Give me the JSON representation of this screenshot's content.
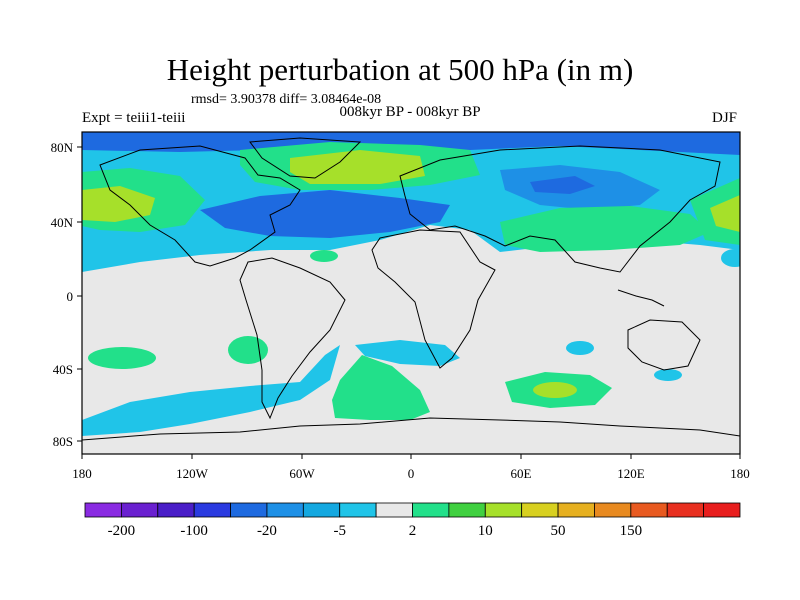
{
  "title": "Height perturbation at 500 hPa (in m)",
  "stats": "rmsd= 3.90378 diff= 3.08464e-08",
  "expt_label": "Expt = teiii1-teiii",
  "period_label": "008kyr BP - 008kyr BP",
  "season_label": "DJF",
  "map": {
    "lat_ticks": [
      "80N",
      "40N",
      "0",
      "40S",
      "80S"
    ],
    "lon_ticks": [
      "180",
      "120W",
      "60W",
      "0",
      "60E",
      "120E",
      "180"
    ]
  },
  "colorbar": {
    "colors": [
      "#8a2be2",
      "#6a20d0",
      "#4a1ec8",
      "#2a3ae0",
      "#1e6ae0",
      "#1e90e6",
      "#14a8e0",
      "#20c4e8",
      "#e8e8e8",
      "#22e08a",
      "#40d040",
      "#a6e02a",
      "#d8d020",
      "#e6b020",
      "#e88a20",
      "#e85a20",
      "#e83020",
      "#e81e1e"
    ],
    "labels": [
      "-200",
      "-100",
      "-20",
      "-5",
      "2",
      "10",
      "50",
      "150"
    ]
  },
  "legend_colors": {
    "neutral": "#e8e8e8",
    "light_blue": "#20c4e8",
    "mid_blue": "#1e90e6",
    "blue": "#1e6ae0",
    "green": "#22e08a",
    "lime": "#a6e02a",
    "bright_green": "#40d040"
  }
}
